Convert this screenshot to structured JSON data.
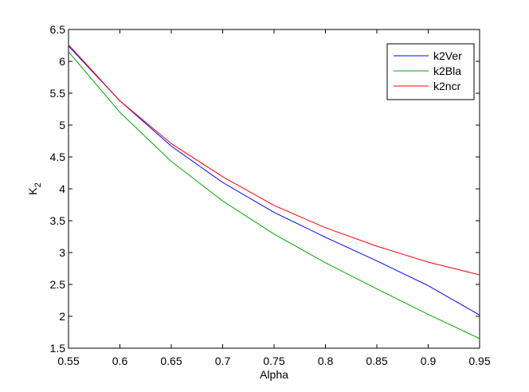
{
  "chart_data": {
    "type": "line",
    "title": "",
    "xlabel": "Alpha",
    "ylabel": "K",
    "ylabel_subscript": "2",
    "xlim": [
      0.55,
      0.95
    ],
    "ylim": [
      1.5,
      6.5
    ],
    "xticks": [
      "0.55",
      "0.6",
      "0.65",
      "0.7",
      "0.75",
      "0.8",
      "0.85",
      "0.9",
      "0.95"
    ],
    "yticks": [
      "1.5",
      "2",
      "2.5",
      "3",
      "3.5",
      "4",
      "4.5",
      "5",
      "5.5",
      "6",
      "6.5"
    ],
    "grid": false,
    "legend_position": "top-right",
    "x": [
      0.55,
      0.6,
      0.65,
      0.7,
      0.75,
      0.8,
      0.85,
      0.9,
      0.95
    ],
    "series": [
      {
        "name": "k2Ver",
        "color": "#0000ff",
        "values": [
          6.24,
          5.38,
          4.67,
          4.1,
          3.63,
          3.24,
          2.87,
          2.48,
          2.02
        ]
      },
      {
        "name": "k2Bla",
        "color": "#00aa00",
        "values": [
          6.15,
          5.2,
          4.43,
          3.81,
          3.29,
          2.84,
          2.43,
          2.03,
          1.65
        ]
      },
      {
        "name": "k2ncr",
        "color": "#ff0000",
        "values": [
          6.26,
          5.38,
          4.71,
          4.19,
          3.74,
          3.39,
          3.1,
          2.85,
          2.65
        ]
      }
    ]
  }
}
